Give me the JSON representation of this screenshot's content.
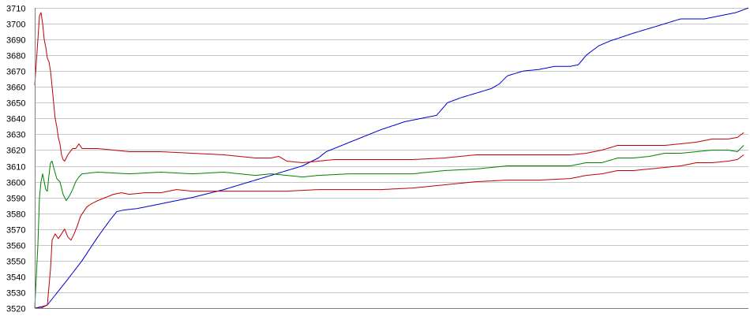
{
  "chart_data": {
    "type": "line",
    "title": "",
    "xlabel": "",
    "ylabel": "",
    "ylim": [
      3520,
      3710
    ],
    "yticks": [
      3520,
      3530,
      3540,
      3550,
      3560,
      3570,
      3580,
      3590,
      3600,
      3610,
      3620,
      3630,
      3640,
      3650,
      3660,
      3670,
      3680,
      3690,
      3700,
      3710
    ],
    "grid": "horizontal",
    "legend": "none",
    "x_count": 300,
    "series": [
      {
        "color": "#0000cc",
        "points": [
          [
            0,
            3520
          ],
          [
            5,
            3521
          ],
          [
            8,
            3522
          ],
          [
            12,
            3527
          ],
          [
            20,
            3537
          ],
          [
            30,
            3550
          ],
          [
            40,
            3565
          ],
          [
            48,
            3576
          ],
          [
            52,
            3581
          ],
          [
            56,
            3582
          ],
          [
            65,
            3583
          ],
          [
            80,
            3586
          ],
          [
            100,
            3590
          ],
          [
            120,
            3595
          ],
          [
            140,
            3601
          ],
          [
            160,
            3607
          ],
          [
            170,
            3610
          ],
          [
            180,
            3615
          ],
          [
            185,
            3619
          ],
          [
            190,
            3621
          ],
          [
            200,
            3625
          ],
          [
            210,
            3629
          ],
          [
            220,
            3633
          ],
          [
            235,
            3638
          ],
          [
            250,
            3641
          ],
          [
            255,
            3642
          ],
          [
            262,
            3650
          ],
          [
            270,
            3653
          ],
          [
            280,
            3656
          ],
          [
            290,
            3659
          ],
          [
            295,
            3662
          ],
          [
            300,
            3667
          ],
          [
            310,
            3670
          ],
          [
            320,
            3671
          ],
          [
            330,
            3673
          ],
          [
            340,
            3673
          ],
          [
            345,
            3674
          ],
          [
            350,
            3680
          ],
          [
            358,
            3686
          ],
          [
            365,
            3689
          ],
          [
            380,
            3694
          ],
          [
            390,
            3697
          ],
          [
            400,
            3700
          ],
          [
            410,
            3703
          ],
          [
            420,
            3703
          ],
          [
            425,
            3703
          ],
          [
            435,
            3705
          ],
          [
            445,
            3707
          ],
          [
            453,
            3710
          ]
        ]
      },
      {
        "color": "#008000",
        "points": [
          [
            0,
            3520
          ],
          [
            2,
            3560
          ],
          [
            3,
            3590
          ],
          [
            4,
            3600
          ],
          [
            5,
            3605
          ],
          [
            6,
            3600
          ],
          [
            7,
            3595
          ],
          [
            8,
            3594
          ],
          [
            9,
            3604
          ],
          [
            10,
            3612
          ],
          [
            11,
            3613
          ],
          [
            12,
            3609
          ],
          [
            14,
            3602
          ],
          [
            16,
            3600
          ],
          [
            18,
            3592
          ],
          [
            20,
            3588
          ],
          [
            22,
            3591
          ],
          [
            24,
            3595
          ],
          [
            26,
            3600
          ],
          [
            28,
            3603
          ],
          [
            30,
            3605
          ],
          [
            40,
            3606
          ],
          [
            60,
            3605
          ],
          [
            80,
            3606
          ],
          [
            100,
            3605
          ],
          [
            120,
            3606
          ],
          [
            130,
            3605
          ],
          [
            140,
            3604
          ],
          [
            150,
            3605
          ],
          [
            160,
            3604
          ],
          [
            170,
            3603
          ],
          [
            180,
            3604
          ],
          [
            200,
            3605
          ],
          [
            240,
            3605
          ],
          [
            260,
            3607
          ],
          [
            280,
            3608
          ],
          [
            300,
            3610
          ],
          [
            330,
            3610
          ],
          [
            340,
            3610
          ],
          [
            350,
            3612
          ],
          [
            360,
            3612
          ],
          [
            370,
            3615
          ],
          [
            380,
            3615
          ],
          [
            390,
            3616
          ],
          [
            400,
            3618
          ],
          [
            410,
            3618
          ],
          [
            420,
            3619
          ],
          [
            430,
            3620
          ],
          [
            440,
            3620
          ],
          [
            446,
            3619
          ],
          [
            450,
            3623
          ]
        ]
      },
      {
        "color": "#c00000",
        "points": [
          [
            0,
            3661
          ],
          [
            2,
            3690
          ],
          [
            3,
            3705
          ],
          [
            4,
            3707
          ],
          [
            5,
            3700
          ],
          [
            6,
            3690
          ],
          [
            7,
            3685
          ],
          [
            8,
            3678
          ],
          [
            9,
            3676
          ],
          [
            10,
            3670
          ],
          [
            11,
            3660
          ],
          [
            12,
            3650
          ],
          [
            13,
            3640
          ],
          [
            14,
            3635
          ],
          [
            15,
            3628
          ],
          [
            16,
            3624
          ],
          [
            17,
            3617
          ],
          [
            18,
            3614
          ],
          [
            19,
            3613
          ],
          [
            21,
            3617
          ],
          [
            24,
            3621
          ],
          [
            26,
            3621
          ],
          [
            28,
            3624
          ],
          [
            30,
            3621
          ],
          [
            40,
            3621
          ],
          [
            60,
            3619
          ],
          [
            80,
            3619
          ],
          [
            100,
            3618
          ],
          [
            120,
            3617
          ],
          [
            130,
            3616
          ],
          [
            140,
            3615
          ],
          [
            150,
            3615
          ],
          [
            155,
            3616
          ],
          [
            160,
            3613
          ],
          [
            170,
            3612
          ],
          [
            180,
            3613
          ],
          [
            190,
            3614
          ],
          [
            200,
            3614
          ],
          [
            240,
            3614
          ],
          [
            260,
            3615
          ],
          [
            280,
            3617
          ],
          [
            300,
            3617
          ],
          [
            340,
            3617
          ],
          [
            350,
            3618
          ],
          [
            360,
            3620
          ],
          [
            370,
            3623
          ],
          [
            380,
            3623
          ],
          [
            390,
            3623
          ],
          [
            400,
            3623
          ],
          [
            410,
            3624
          ],
          [
            420,
            3625
          ],
          [
            430,
            3627
          ],
          [
            440,
            3627
          ],
          [
            446,
            3628
          ],
          [
            450,
            3631
          ]
        ]
      },
      {
        "color": "#c00000",
        "points": [
          [
            0,
            3520
          ],
          [
            4,
            3520
          ],
          [
            8,
            3522
          ],
          [
            10,
            3545
          ],
          [
            11,
            3563
          ],
          [
            13,
            3567
          ],
          [
            15,
            3564
          ],
          [
            17,
            3567
          ],
          [
            19,
            3570
          ],
          [
            21,
            3565
          ],
          [
            23,
            3563
          ],
          [
            25,
            3567
          ],
          [
            27,
            3572
          ],
          [
            29,
            3578
          ],
          [
            31,
            3581
          ],
          [
            33,
            3584
          ],
          [
            36,
            3586
          ],
          [
            40,
            3588
          ],
          [
            45,
            3590
          ],
          [
            50,
            3592
          ],
          [
            55,
            3593
          ],
          [
            60,
            3592
          ],
          [
            70,
            3593
          ],
          [
            80,
            3593
          ],
          [
            90,
            3595
          ],
          [
            100,
            3594
          ],
          [
            120,
            3594
          ],
          [
            140,
            3594
          ],
          [
            160,
            3594
          ],
          [
            180,
            3595
          ],
          [
            200,
            3595
          ],
          [
            220,
            3595
          ],
          [
            240,
            3596
          ],
          [
            260,
            3598
          ],
          [
            280,
            3600
          ],
          [
            300,
            3601
          ],
          [
            320,
            3601
          ],
          [
            340,
            3602
          ],
          [
            350,
            3604
          ],
          [
            360,
            3605
          ],
          [
            370,
            3607
          ],
          [
            380,
            3607
          ],
          [
            390,
            3608
          ],
          [
            400,
            3609
          ],
          [
            410,
            3610
          ],
          [
            420,
            3612
          ],
          [
            430,
            3612
          ],
          [
            440,
            3613
          ],
          [
            446,
            3614
          ],
          [
            450,
            3617
          ]
        ]
      }
    ]
  }
}
